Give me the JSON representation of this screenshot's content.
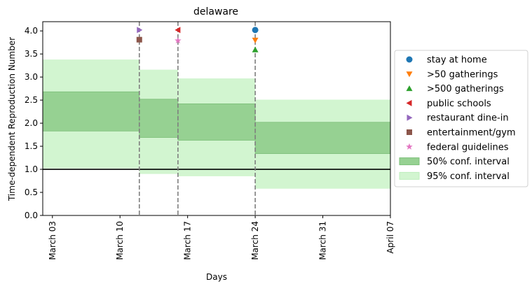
{
  "chart_data": {
    "type": "step-area",
    "title": "delaware",
    "xlabel": "Days",
    "ylabel": "Time-dependent Reproduction Number",
    "x_start": "2020-03-02",
    "xlim": [
      "March 02",
      "April 07"
    ],
    "ylim": [
      0,
      4.2
    ],
    "x_ticks": [
      {
        "label": "March 03",
        "date": "03-03"
      },
      {
        "label": "March 10",
        "date": "03-10"
      },
      {
        "label": "March 17",
        "date": "03-17"
      },
      {
        "label": "March 24",
        "date": "03-24"
      },
      {
        "label": "March 31",
        "date": "03-31"
      },
      {
        "label": "April 07",
        "date": "04-07"
      }
    ],
    "y_ticks": [
      "0.0",
      "0.5",
      "1.0",
      "1.5",
      "2.0",
      "2.5",
      "3.0",
      "3.5",
      "4.0"
    ],
    "reference_line": 1.0,
    "segments": [
      {
        "x_start": "03-02",
        "x_end": "03-12",
        "ci50": [
          1.83,
          2.68
        ],
        "ci95": [
          1.02,
          3.38
        ]
      },
      {
        "x_start": "03-12",
        "x_end": "03-16",
        "ci50": [
          1.69,
          2.52
        ],
        "ci95": [
          0.9,
          3.16
        ]
      },
      {
        "x_start": "03-16",
        "x_end": "03-24",
        "ci50": [
          1.63,
          2.42
        ],
        "ci95": [
          0.85,
          2.97
        ]
      },
      {
        "x_start": "03-24",
        "x_end": "04-07",
        "ci50": [
          1.34,
          2.02
        ],
        "ci95": [
          0.58,
          2.51
        ]
      }
    ],
    "interventions": [
      {
        "date": "03-12",
        "label": "restaurant dine-in",
        "y": 4.02
      },
      {
        "date": "03-12",
        "label": "entertainment/gym",
        "y": 3.81
      },
      {
        "date": "03-16",
        "label": "public schools",
        "y": 4.02
      },
      {
        "date": "03-16",
        "label": "federal guidelines",
        "y": 3.79
      },
      {
        "date": "03-24",
        "label": "stay at home",
        "y": 4.02
      },
      {
        "date": "03-24",
        "label": ">50 gatherings",
        "y": 3.8
      },
      {
        "date": "03-24",
        "label": ">500 gatherings",
        "y": 3.59
      }
    ],
    "vlines": [
      "03-12",
      "03-16",
      "03-24"
    ],
    "legend_position": "outside-right",
    "legend": [
      {
        "label": "stay at home",
        "marker": "circle",
        "color": "#1f77b4"
      },
      {
        "label": ">50 gatherings",
        "marker": "triangle-down",
        "color": "#ff7f0e"
      },
      {
        "label": ">500 gatherings",
        "marker": "triangle-up",
        "color": "#2ca02c"
      },
      {
        "label": "public schools",
        "marker": "triangle-left",
        "color": "#d62728"
      },
      {
        "label": "restaurant dine-in",
        "marker": "triangle-right",
        "color": "#9467bd"
      },
      {
        "label": "entertainment/gym",
        "marker": "square",
        "color": "#8c564b"
      },
      {
        "label": "federal guidelines",
        "marker": "star",
        "color": "#e377c2"
      },
      {
        "label": "50% conf. interval",
        "marker": "patch",
        "color": "#96d192",
        "edge": "#7cbf78"
      },
      {
        "label": "95% conf. interval",
        "marker": "patch",
        "color": "#d2f5d0",
        "edge": "#bfeebd"
      }
    ],
    "colors": {
      "ci50": "#96d192",
      "ci95": "#d2f5d0",
      "vline": "#7f7f7f",
      "reference": "#000000"
    }
  }
}
